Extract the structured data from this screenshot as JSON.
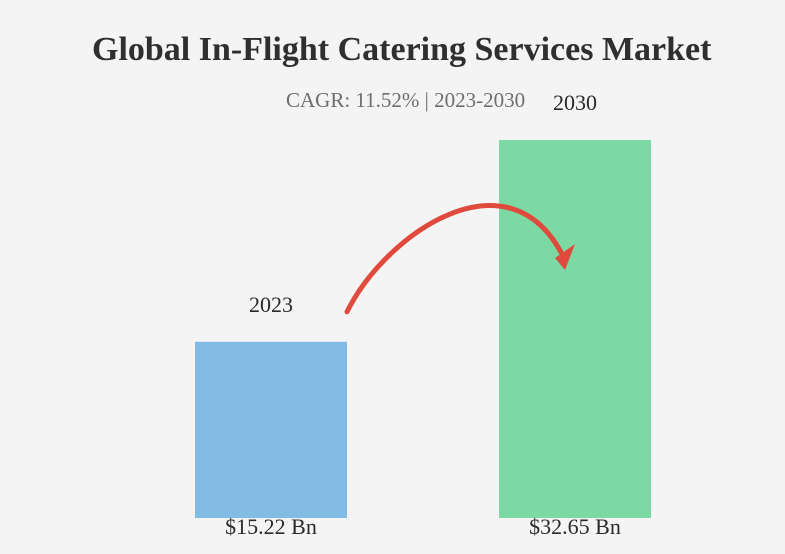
{
  "chart_data": {
    "type": "bar",
    "title": "Global In-Flight Catering Services Market",
    "subtitle": "CAGR: 11.52% | 2023-2030",
    "categories": [
      "2023",
      "2030"
    ],
    "values": [
      15.22,
      32.65
    ],
    "value_labels": [
      "$15.22 Bn",
      "$32.65 Bn"
    ],
    "colors": [
      "#82bbe3",
      "#7cd9a4"
    ],
    "arrow_color": "#e04a3c",
    "xlabel": "",
    "ylabel": "",
    "grid": false,
    "legend": "none"
  }
}
